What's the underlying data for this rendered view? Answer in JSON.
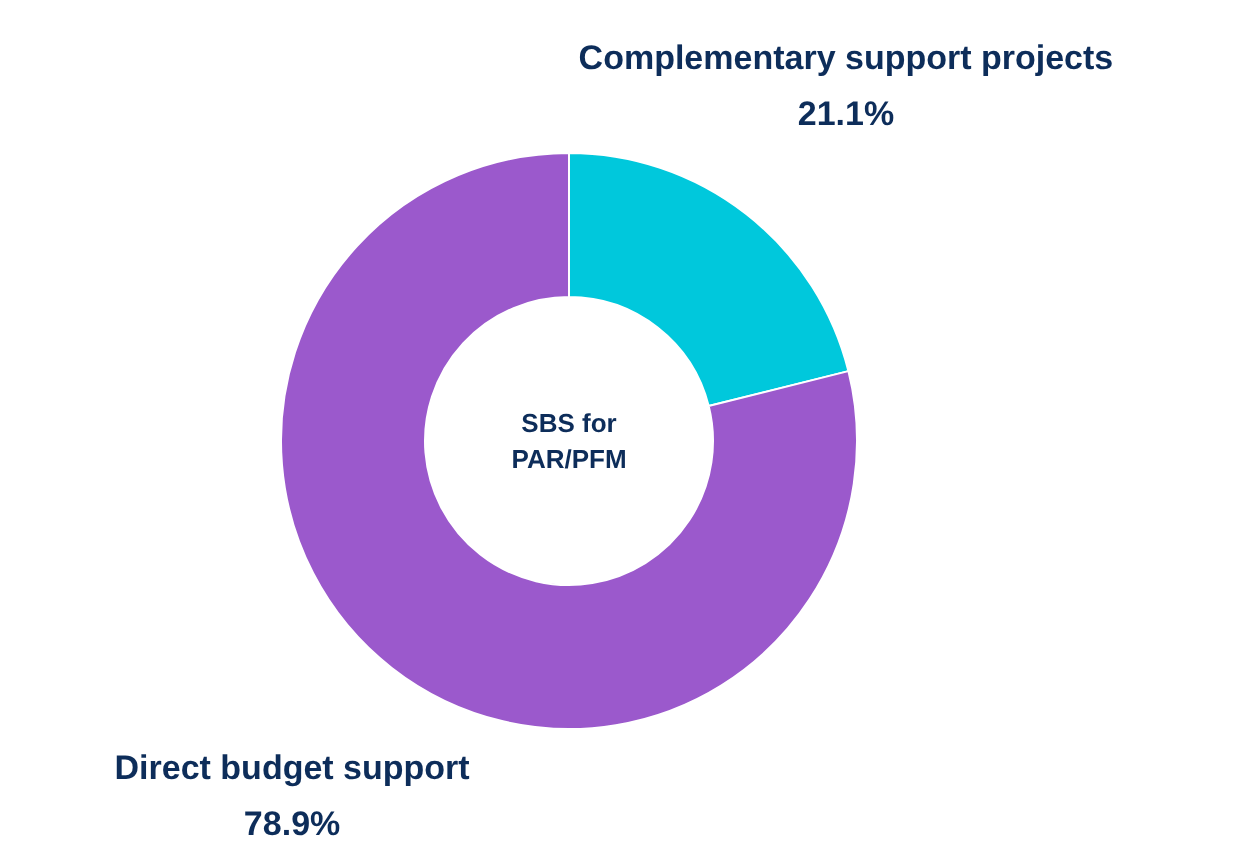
{
  "chart_data": {
    "type": "donut",
    "title": "SBS for PAR/PFM",
    "categories": [
      "Complementary support projects",
      "Direct budget support"
    ],
    "values": [
      21.1,
      78.9
    ],
    "value_labels": [
      "21.1%",
      "78.9%"
    ],
    "colors": [
      "#00c8dc",
      "#9b59cc"
    ]
  }
}
